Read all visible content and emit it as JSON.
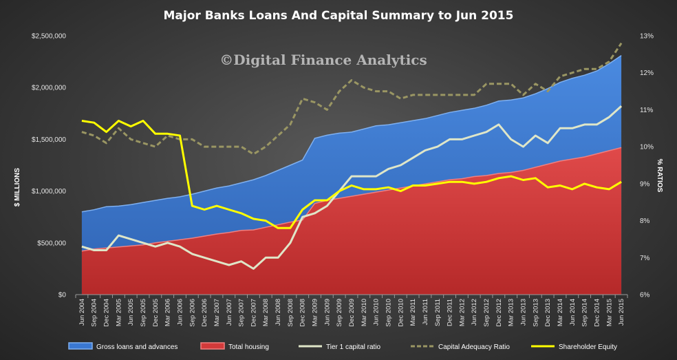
{
  "chart_data": {
    "type": "area",
    "title": "Major Banks Loans And Capital Summary to Jun 2015",
    "watermark": "©Digital Finance Analytics",
    "ylabel": "$ MILLIONS",
    "y2label": "% RATIOS",
    "ylim": [
      0,
      2500000
    ],
    "y2lim": [
      6,
      13
    ],
    "yticks": [
      "$0",
      "$500,000",
      "$1,000,000",
      "$1,500,000",
      "$2,000,000",
      "$2,500,000"
    ],
    "y2ticks": [
      "6%",
      "7%",
      "8%",
      "9%",
      "10%",
      "11%",
      "12%",
      "13%"
    ],
    "grid": false,
    "legend_position": "bottom",
    "categories": [
      "Jun 2004",
      "Sep 2004",
      "Dec 2004",
      "Mar 2005",
      "Jun 2005",
      "Sep 2005",
      "Dec 2005",
      "Mar 2006",
      "Jun 2006",
      "Sep 2006",
      "Dec 2006",
      "Mar 2007",
      "Jun 2007",
      "Sep 2007",
      "Dec 2007",
      "Mar 2008",
      "Jun 2008",
      "Sep 2008",
      "Dec 2008",
      "Mar 2009",
      "Jun 2009",
      "Sep 2009",
      "Dec 2009",
      "Mar 2010",
      "Jun 2010",
      "Sep 2010",
      "Dec 2010",
      "Mar 2011",
      "Jun 2011",
      "Sep 2011",
      "Dec 2011",
      "Mar 2012",
      "Jun 2012",
      "Sep 2012",
      "Dec 2012",
      "Mar 2013",
      "Jun 2013",
      "Sep 2013",
      "Dec 2013",
      "Mar 2014",
      "Jun 2014",
      "Sep 2014",
      "Dec 2014",
      "Mar 2015",
      "Jun 2015"
    ],
    "series": [
      {
        "name": "Gross loans and advances",
        "kind": "area",
        "axis": "left",
        "color": "#3a78d2",
        "values": [
          800000,
          820000,
          850000,
          855000,
          870000,
          890000,
          910000,
          930000,
          945000,
          970000,
          1000000,
          1030000,
          1050000,
          1080000,
          1110000,
          1150000,
          1200000,
          1250000,
          1300000,
          1510000,
          1540000,
          1560000,
          1570000,
          1600000,
          1630000,
          1640000,
          1660000,
          1680000,
          1700000,
          1730000,
          1760000,
          1780000,
          1800000,
          1830000,
          1870000,
          1880000,
          1900000,
          1940000,
          1990000,
          2050000,
          2090000,
          2120000,
          2160000,
          2230000,
          2310000
        ]
      },
      {
        "name": "Total housing",
        "kind": "area",
        "axis": "left",
        "color": "#d33a3a",
        "values": [
          420000,
          440000,
          450000,
          460000,
          470000,
          480000,
          500000,
          515000,
          530000,
          545000,
          565000,
          585000,
          600000,
          620000,
          625000,
          650000,
          675000,
          700000,
          720000,
          880000,
          910000,
          930000,
          950000,
          970000,
          990000,
          1010000,
          1030000,
          1050000,
          1070000,
          1090000,
          1110000,
          1120000,
          1140000,
          1150000,
          1170000,
          1180000,
          1200000,
          1230000,
          1260000,
          1290000,
          1310000,
          1330000,
          1360000,
          1390000,
          1420000
        ]
      },
      {
        "name": "Tier 1 capital ratio",
        "kind": "line",
        "axis": "right",
        "color": "#dfe6c8",
        "values": [
          7.3,
          7.2,
          7.2,
          7.6,
          7.5,
          7.4,
          7.3,
          7.4,
          7.3,
          7.1,
          7.0,
          6.9,
          6.8,
          6.9,
          6.7,
          7.0,
          7.0,
          7.4,
          8.1,
          8.2,
          8.4,
          8.8,
          9.2,
          9.2,
          9.2,
          9.4,
          9.5,
          9.7,
          9.9,
          10.0,
          10.2,
          10.2,
          10.3,
          10.4,
          10.6,
          10.2,
          10.0,
          10.3,
          10.1,
          10.5,
          10.5,
          10.6,
          10.6,
          10.8,
          11.1
        ]
      },
      {
        "name": "Capital Adequacy Ratio",
        "kind": "dashed",
        "axis": "right",
        "color": "#9a9663",
        "values": [
          10.4,
          10.3,
          10.1,
          10.5,
          10.2,
          10.1,
          10.0,
          10.3,
          10.2,
          10.2,
          10.0,
          10.0,
          10.0,
          10.0,
          9.8,
          10.0,
          10.3,
          10.6,
          11.3,
          11.2,
          11.0,
          11.5,
          11.8,
          11.6,
          11.5,
          11.5,
          11.3,
          11.4,
          11.4,
          11.4,
          11.4,
          11.4,
          11.4,
          11.7,
          11.7,
          11.7,
          11.4,
          11.7,
          11.5,
          11.9,
          12.0,
          12.1,
          12.1,
          12.3,
          12.8
        ]
      },
      {
        "name": "Shareholder Equity",
        "kind": "line",
        "axis": "right",
        "color": "#ffff00",
        "values": [
          10.7,
          10.65,
          10.4,
          10.7,
          10.55,
          10.7,
          10.35,
          10.35,
          10.3,
          8.4,
          8.3,
          8.4,
          8.3,
          8.2,
          8.05,
          8.0,
          7.8,
          7.8,
          8.3,
          8.55,
          8.55,
          8.8,
          8.95,
          8.85,
          8.85,
          8.9,
          8.8,
          8.95,
          8.95,
          9.0,
          9.05,
          9.05,
          9.0,
          9.05,
          9.15,
          9.2,
          9.1,
          9.15,
          8.9,
          8.95,
          8.85,
          9.0,
          8.9,
          8.85,
          9.05
        ]
      }
    ]
  }
}
